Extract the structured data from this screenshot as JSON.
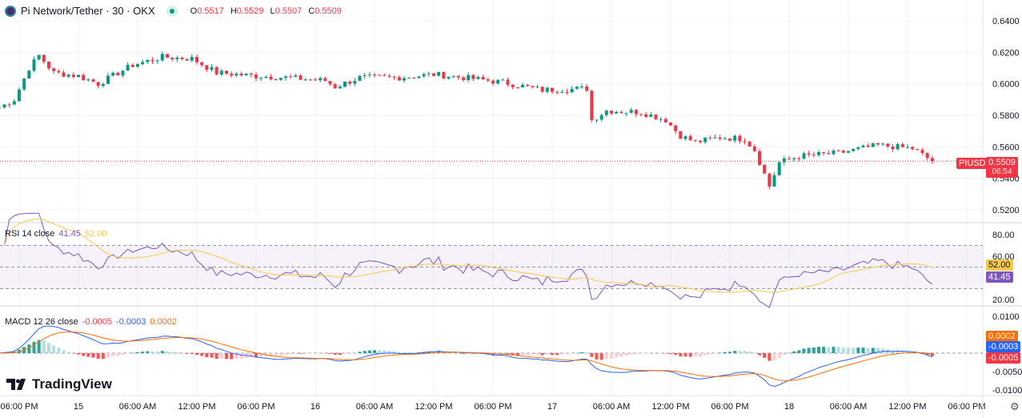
{
  "header": {
    "symbol": "Pi Network/Tether · 30 · OKX",
    "o_label": "O",
    "o": "0.5517",
    "h_label": "H",
    "h": "0.5529",
    "l_label": "L",
    "l": "0.5507",
    "c_label": "C",
    "c": "0.5509"
  },
  "price_axis": {
    "ticks": [
      "0.6400",
      "0.6200",
      "0.6000",
      "0.5800",
      "0.5600",
      "0.5400",
      "0.5200"
    ],
    "last_price": "0.5509",
    "countdown": "06:54",
    "symbol_tag": "PIUSDT"
  },
  "rsi": {
    "label": "RSI 14 close",
    "value": "41.45",
    "ma": "52.00",
    "ticks": [
      "80.00",
      "60.00",
      "20.00"
    ]
  },
  "macd": {
    "label": "MACD 12 26 close",
    "hist": "-0.0005",
    "macd": "-0.0003",
    "signal": "0.0002",
    "ticks": [
      "0.0100",
      "-0.0050",
      "-0.0100"
    ]
  },
  "time_axis": [
    "06:00 PM",
    "15",
    "06:00 AM",
    "12:00 PM",
    "06:00 PM",
    "16",
    "06:00 AM",
    "12:00 PM",
    "06:00 PM",
    "17",
    "06:00 AM",
    "12:00 PM",
    "06:00 PM",
    "18",
    "06:00 AM",
    "12:00 PM",
    "06:00 PM"
  ],
  "brand": "TradingView",
  "colors": {
    "up": "#089981",
    "down": "#f23645",
    "rsi": "#7e57c2",
    "rsi_ma": "#f7c948",
    "macd": "#2962ff",
    "signal": "#ff6d00"
  },
  "price_path_hours_from_first_label": [
    [
      -2,
      0.585
    ],
    [
      -0.5,
      0.59
    ],
    [
      1,
      0.61
    ],
    [
      2,
      0.618
    ],
    [
      3.5,
      0.607
    ],
    [
      6,
      0.605
    ],
    [
      8,
      0.6
    ],
    [
      11.5,
      0.612
    ],
    [
      14.5,
      0.617
    ],
    [
      17.5,
      0.616
    ],
    [
      20,
      0.607
    ],
    [
      24,
      0.605
    ],
    [
      27,
      0.604
    ],
    [
      31,
      0.602
    ],
    [
      32,
      0.598
    ],
    [
      34.5,
      0.604
    ],
    [
      38.5,
      0.604
    ],
    [
      42,
      0.606
    ],
    [
      45,
      0.604
    ],
    [
      49,
      0.601
    ],
    [
      53,
      0.596
    ],
    [
      57.5,
      0.597
    ],
    [
      58,
      0.577
    ],
    [
      59.5,
      0.583
    ],
    [
      63,
      0.582
    ],
    [
      65.5,
      0.577
    ],
    [
      67,
      0.567
    ],
    [
      68.5,
      0.563
    ],
    [
      71,
      0.566
    ],
    [
      73.5,
      0.565
    ],
    [
      74.5,
      0.558
    ],
    [
      76,
      0.535
    ],
    [
      77,
      0.55
    ],
    [
      79,
      0.554
    ],
    [
      83,
      0.556
    ],
    [
      87,
      0.561
    ],
    [
      90.5,
      0.559
    ],
    [
      92.5,
      0.5509
    ]
  ]
}
